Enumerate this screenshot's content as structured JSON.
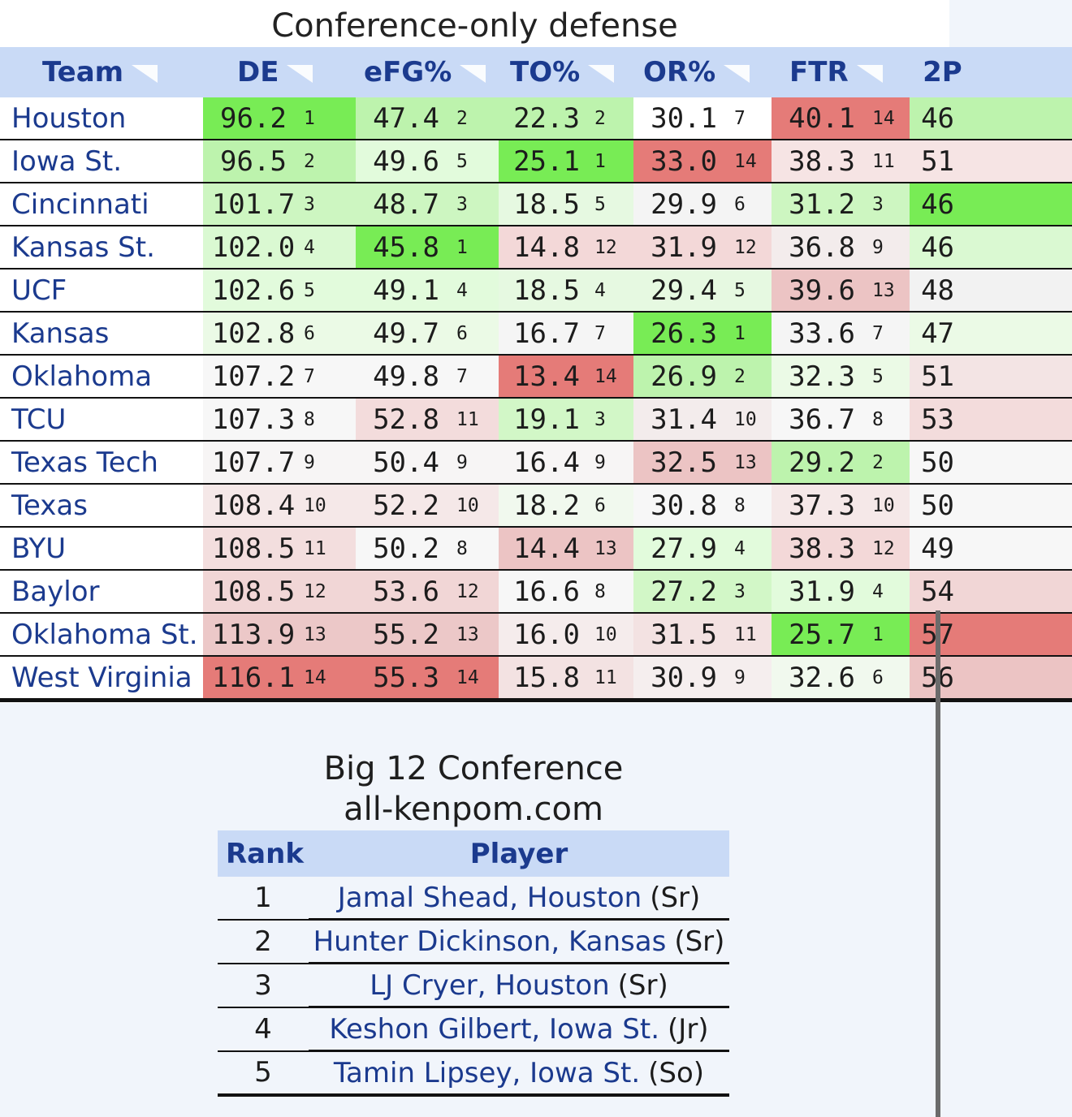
{
  "page_title": "Conference-only defense",
  "columns": [
    {
      "label": "Team"
    },
    {
      "label": "DE"
    },
    {
      "label": "eFG%"
    },
    {
      "label": "TO%"
    },
    {
      "label": "OR%"
    },
    {
      "label": "FTR"
    },
    {
      "label": "2P"
    }
  ],
  "colors": {
    "header_bg": "#c9daf6",
    "link": "#1b3a8e",
    "best_green": "#6fee4a",
    "good_green": "#c3f5b6",
    "neutral": "#f1f1f1",
    "bad_red": "#edc7c7",
    "worst_red": "#e57474"
  },
  "rows": [
    {
      "team": "Houston",
      "cells": [
        {
          "v": "96.2",
          "r": "1",
          "c": "#78ec55"
        },
        {
          "v": "47.4",
          "r": "2",
          "c": "#bdf3ad"
        },
        {
          "v": "22.3",
          "r": "2",
          "c": "#bdf3ad"
        },
        {
          "v": "30.1",
          "r": "7",
          "c": "#ffffff"
        },
        {
          "v": "40.1",
          "r": "14",
          "c": "#e57b78"
        },
        {
          "v": "46",
          "r": "",
          "c": "#bdf3ad"
        }
      ]
    },
    {
      "team": "Iowa St.",
      "cells": [
        {
          "v": "96.5",
          "r": "2",
          "c": "#bdf3ad"
        },
        {
          "v": "49.6",
          "r": "5",
          "c": "#e2fbdc"
        },
        {
          "v": "25.1",
          "r": "1",
          "c": "#78ec55"
        },
        {
          "v": "33.0",
          "r": "14",
          "c": "#e57b78"
        },
        {
          "v": "38.3",
          "r": "11",
          "c": "#f6e4e4"
        },
        {
          "v": "51",
          "r": "",
          "c": "#f6e4e4"
        }
      ]
    },
    {
      "team": "Cincinnati",
      "cells": [
        {
          "v": "101.7",
          "r": "3",
          "c": "#cdf6c1"
        },
        {
          "v": "48.7",
          "r": "3",
          "c": "#cdf6c1"
        },
        {
          "v": "18.5",
          "r": "5",
          "c": "#e6f9e1"
        },
        {
          "v": "29.9",
          "r": "6",
          "c": "#f4f4f4"
        },
        {
          "v": "31.2",
          "r": "3",
          "c": "#cdf6c1"
        },
        {
          "v": "46",
          "r": "",
          "c": "#78ec55"
        }
      ]
    },
    {
      "team": "Kansas St.",
      "cells": [
        {
          "v": "102.0",
          "r": "4",
          "c": "#daf9d2"
        },
        {
          "v": "45.8",
          "r": "1",
          "c": "#78ec55"
        },
        {
          "v": "14.8",
          "r": "12",
          "c": "#f3d8d8"
        },
        {
          "v": "31.9",
          "r": "12",
          "c": "#f3d8d8"
        },
        {
          "v": "36.8",
          "r": "9",
          "c": "#f3ecec"
        },
        {
          "v": "46",
          "r": "",
          "c": "#daf9d2"
        }
      ]
    },
    {
      "team": "UCF",
      "cells": [
        {
          "v": "102.6",
          "r": "5",
          "c": "#e2fbdc"
        },
        {
          "v": "49.1",
          "r": "4",
          "c": "#e2fbdc"
        },
        {
          "v": "18.5",
          "r": "4",
          "c": "#e6f9e1"
        },
        {
          "v": "29.4",
          "r": "5",
          "c": "#e6f9e1"
        },
        {
          "v": "39.6",
          "r": "13",
          "c": "#ecc4c4"
        },
        {
          "v": "48",
          "r": "",
          "c": "#f2f2f2"
        }
      ]
    },
    {
      "team": "Kansas",
      "cells": [
        {
          "v": "102.8",
          "r": "6",
          "c": "#ebfae6"
        },
        {
          "v": "49.7",
          "r": "6",
          "c": "#ebfae6"
        },
        {
          "v": "16.7",
          "r": "7",
          "c": "#f5f5f5"
        },
        {
          "v": "26.3",
          "r": "1",
          "c": "#78ec55"
        },
        {
          "v": "33.6",
          "r": "7",
          "c": "#f5f5f5"
        },
        {
          "v": "47",
          "r": "",
          "c": "#ebfae6"
        }
      ]
    },
    {
      "team": "Oklahoma",
      "cells": [
        {
          "v": "107.2",
          "r": "7",
          "c": "#f7f7f7"
        },
        {
          "v": "49.8",
          "r": "7",
          "c": "#f7f7f7"
        },
        {
          "v": "13.4",
          "r": "14",
          "c": "#e57b78"
        },
        {
          "v": "26.9",
          "r": "2",
          "c": "#bdf3ad"
        },
        {
          "v": "32.3",
          "r": "5",
          "c": "#ebfae6"
        },
        {
          "v": "51",
          "r": "",
          "c": "#f3e4e4"
        }
      ]
    },
    {
      "team": "TCU",
      "cells": [
        {
          "v": "107.3",
          "r": "8",
          "c": "#f7f7f7"
        },
        {
          "v": "52.8",
          "r": "11",
          "c": "#f3dcdc"
        },
        {
          "v": "19.1",
          "r": "3",
          "c": "#d2f7c7"
        },
        {
          "v": "31.4",
          "r": "10",
          "c": "#f3ecec"
        },
        {
          "v": "36.7",
          "r": "8",
          "c": "#f7f7f7"
        },
        {
          "v": "53",
          "r": "",
          "c": "#f3dcdc"
        }
      ]
    },
    {
      "team": "Texas Tech",
      "cells": [
        {
          "v": "107.7",
          "r": "9",
          "c": "#f7f5f5"
        },
        {
          "v": "50.4",
          "r": "9",
          "c": "#f7f5f5"
        },
        {
          "v": "16.4",
          "r": "9",
          "c": "#f7f5f5"
        },
        {
          "v": "32.5",
          "r": "13",
          "c": "#ecc4c4"
        },
        {
          "v": "29.2",
          "r": "2",
          "c": "#bdf3ad"
        },
        {
          "v": "50",
          "r": "",
          "c": "#f7f7f7"
        }
      ]
    },
    {
      "team": "Texas",
      "cells": [
        {
          "v": "108.4",
          "r": "10",
          "c": "#f5e8e8"
        },
        {
          "v": "52.2",
          "r": "10",
          "c": "#f5e8e8"
        },
        {
          "v": "18.2",
          "r": "6",
          "c": "#f1f9ee"
        },
        {
          "v": "30.8",
          "r": "8",
          "c": "#f7f7f7"
        },
        {
          "v": "37.3",
          "r": "10",
          "c": "#f5e8e8"
        },
        {
          "v": "50",
          "r": "",
          "c": "#f7f7f7"
        }
      ]
    },
    {
      "team": "BYU",
      "cells": [
        {
          "v": "108.5",
          "r": "11",
          "c": "#f3dede"
        },
        {
          "v": "50.2",
          "r": "8",
          "c": "#f7f7f7"
        },
        {
          "v": "14.4",
          "r": "13",
          "c": "#ecc4c4"
        },
        {
          "v": "27.9",
          "r": "4",
          "c": "#e2fbdc"
        },
        {
          "v": "38.3",
          "r": "12",
          "c": "#f3d8d8"
        },
        {
          "v": "49",
          "r": "",
          "c": "#f7f7f7"
        }
      ]
    },
    {
      "team": "Baylor",
      "cells": [
        {
          "v": "108.5",
          "r": "12",
          "c": "#f1d6d6"
        },
        {
          "v": "53.6",
          "r": "12",
          "c": "#f1d6d6"
        },
        {
          "v": "16.6",
          "r": "8",
          "c": "#f7f7f7"
        },
        {
          "v": "27.2",
          "r": "3",
          "c": "#d2f7c7"
        },
        {
          "v": "31.9",
          "r": "4",
          "c": "#e2fbdc"
        },
        {
          "v": "54",
          "r": "",
          "c": "#f1d6d6"
        }
      ]
    },
    {
      "team": "Oklahoma St.",
      "cells": [
        {
          "v": "113.9",
          "r": "13",
          "c": "#ecc8c8"
        },
        {
          "v": "55.2",
          "r": "13",
          "c": "#ecc8c8"
        },
        {
          "v": "16.0",
          "r": "10",
          "c": "#f5ecec"
        },
        {
          "v": "31.5",
          "r": "11",
          "c": "#f3e2e2"
        },
        {
          "v": "25.7",
          "r": "1",
          "c": "#78ec55"
        },
        {
          "v": "57",
          "r": "",
          "c": "#e57b78"
        }
      ]
    },
    {
      "team": "West Virginia",
      "cells": [
        {
          "v": "116.1",
          "r": "14",
          "c": "#e57b78"
        },
        {
          "v": "55.3",
          "r": "14",
          "c": "#e57b78"
        },
        {
          "v": "15.8",
          "r": "11",
          "c": "#f3e2e2"
        },
        {
          "v": "30.9",
          "r": "9",
          "c": "#f5eeee"
        },
        {
          "v": "32.6",
          "r": "6",
          "c": "#f1f9ee"
        },
        {
          "v": "56",
          "r": "",
          "c": "#ecc4c4"
        }
      ]
    }
  ],
  "conference": {
    "title": "Big 12 Conference",
    "subtitle": "all-kenpom.com",
    "headers": {
      "rank": "Rank",
      "player": "Player"
    },
    "players": [
      {
        "rank": "1",
        "name": "Jamal Shead",
        "team": "Houston",
        "class": "(Sr)"
      },
      {
        "rank": "2",
        "name": "Hunter Dickinson",
        "team": "Kansas",
        "class": "(Sr)"
      },
      {
        "rank": "3",
        "name": "LJ Cryer",
        "team": "Houston",
        "class": "(Sr)"
      },
      {
        "rank": "4",
        "name": "Keshon Gilbert",
        "team": "Iowa St.",
        "class": "(Jr)"
      },
      {
        "rank": "5",
        "name": "Tamin Lipsey",
        "team": "Iowa St.",
        "class": "(So)"
      }
    ]
  }
}
